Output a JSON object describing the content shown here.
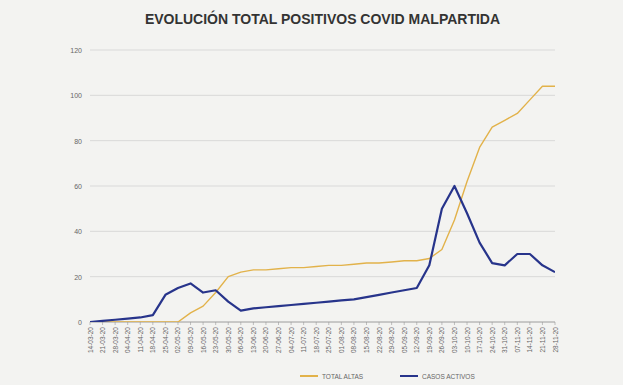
{
  "chart_data": {
    "type": "line",
    "title": "EVOLUCIÓN TOTAL POSITIVOS COVID MALPARTIDA",
    "categories": [
      "14-03-20",
      "21-03-20",
      "28-03-20",
      "04-04-20",
      "11-04-20",
      "18-04-20",
      "25-04-20",
      "02-05-20",
      "09-05-20",
      "16-05-20",
      "23-05-20",
      "30-05-20",
      "06-06-20",
      "13-06-20",
      "20-06-20",
      "27-06-20",
      "04-07-20",
      "11-07-20",
      "18-07-20",
      "25-07-20",
      "01-08-20",
      "08-08-20",
      "15-08-20",
      "22-08-20",
      "29-08-20",
      "05-09-20",
      "12-09-20",
      "19-09-20",
      "26-09-20",
      "03-10-20",
      "10-10-20",
      "17-10-20",
      "24-10-20",
      "31-10-20",
      "07-11-20",
      "14-11-20",
      "21-11-20",
      "28-11-20"
    ],
    "series": [
      {
        "name": "TOTAL ALTAS",
        "color": "#e2b24a",
        "values": [
          0,
          0,
          0,
          0,
          0,
          0,
          0,
          0,
          4,
          7,
          13,
          20,
          22,
          23,
          23,
          23.5,
          24,
          24,
          24.5,
          25,
          25,
          25.5,
          26,
          26,
          26.5,
          27,
          27,
          28,
          32,
          45,
          62,
          77,
          86,
          89,
          92,
          98,
          104,
          104
        ]
      },
      {
        "name": "CASOS ACTIVOS",
        "color": "#27348b",
        "values": [
          0,
          0.5,
          1,
          1.5,
          2,
          3,
          12,
          15,
          17,
          13,
          14,
          9,
          5,
          6,
          6.5,
          7,
          7.5,
          8,
          8.5,
          9,
          9.5,
          10,
          11,
          12,
          13,
          14,
          15,
          25,
          50,
          60,
          48,
          35,
          26,
          25,
          30,
          30,
          25,
          22
        ]
      }
    ],
    "ylim": [
      0,
      120
    ],
    "yticks": [
      0,
      20,
      40,
      60,
      80,
      100,
      120
    ],
    "grid": true,
    "legend": "bottom"
  }
}
